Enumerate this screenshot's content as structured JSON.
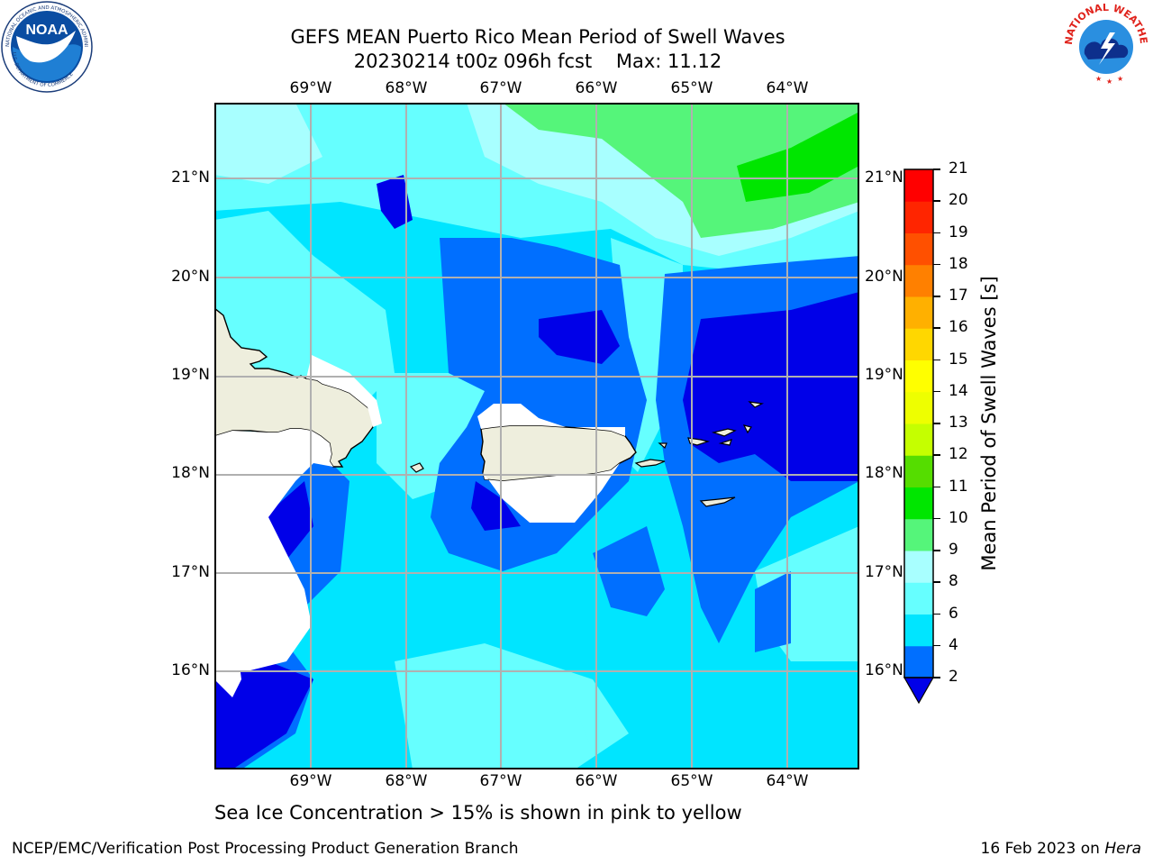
{
  "title": {
    "line1": "GEFS MEAN Puerto Rico Mean Period of Swell Waves",
    "line2": "20230214 t00z 096h fcst    Max: 11.12"
  },
  "map": {
    "lon_labels": [
      "69°W",
      "68°W",
      "67°W",
      "66°W",
      "65°W",
      "64°W"
    ],
    "lat_labels": [
      "21°N",
      "20°N",
      "19°N",
      "18°N",
      "17°N",
      "16°N"
    ],
    "region": "Puerto Rico",
    "variable": "Mean Period of Swell Waves",
    "max_value": 11.12
  },
  "colorbar": {
    "label": "Mean Period of Swell Waves [s]",
    "ticks": [
      "21",
      "20",
      "19",
      "18",
      "17",
      "16",
      "15",
      "14",
      "13",
      "12",
      "11",
      "10",
      "9",
      "8",
      "6",
      "4",
      "2"
    ],
    "levels": [
      2,
      4,
      6,
      8,
      9,
      10,
      11,
      12,
      13,
      14,
      15,
      16,
      17,
      18,
      19,
      20,
      21
    ],
    "colors": [
      "#0000ff",
      "#006fff",
      "#00e5ff",
      "#66ffff",
      "#a8ffff",
      "#55f57a",
      "#00e600",
      "#55dd00",
      "#c5ff00",
      "#eeff00",
      "#ffff00",
      "#ffd700",
      "#ffb000",
      "#ff8000",
      "#ff5000",
      "#ff2500",
      "#ff0000"
    ],
    "under_color": "#0000e8"
  },
  "logos": {
    "left": "NOAA",
    "left_ring_text": "NATIONAL OCEANIC AND ATMOSPHERIC ADMINISTRATION · U.S. DEPARTMENT OF COMMERCE",
    "right_ring_text": "NATIONAL WEATHER SERVICE"
  },
  "note": "Sea Ice Concentration > 15% is shown in pink to yellow",
  "footer": {
    "left": "NCEP/EMC/Verification Post Processing Product Generation Branch",
    "right_date": "16 Feb 2023 on",
    "right_host": "Hera"
  }
}
